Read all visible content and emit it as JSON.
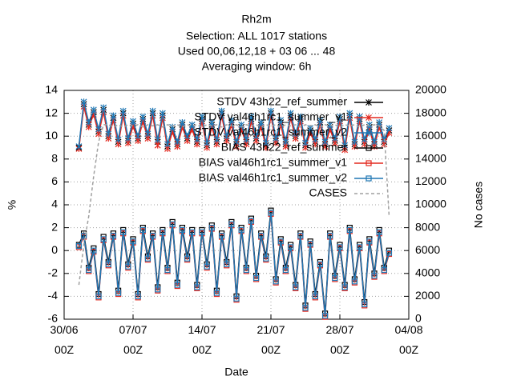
{
  "chart_data": {
    "type": "line",
    "title": "Rh2m",
    "subtitle": [
      "Selection: ALL   1017 stations",
      "Used  00,06,12,18 + 03 06 ... 48",
      "Averaging window:  6h"
    ],
    "xlabel": "Date",
    "ylabel": "%",
    "y2label": "No cases",
    "xlim": [
      0,
      35
    ],
    "xticks": [
      {
        "value": 0,
        "label": "30/06\n00Z"
      },
      {
        "value": 7,
        "label": "07/07\n00Z"
      },
      {
        "value": 14,
        "label": "14/07\n00Z"
      },
      {
        "value": 21,
        "label": "21/07\n00Z"
      },
      {
        "value": 28,
        "label": "28/07\n00Z"
      },
      {
        "value": 35,
        "label": "04/08\n00Z"
      }
    ],
    "ylim": [
      -6,
      14
    ],
    "yticks": [
      -6,
      -4,
      -2,
      0,
      2,
      4,
      6,
      8,
      10,
      12,
      14
    ],
    "y2lim": [
      0,
      20000
    ],
    "y2ticks": [
      0,
      2000,
      4000,
      6000,
      8000,
      10000,
      12000,
      14000,
      16000,
      18000,
      20000
    ],
    "grid": true,
    "legend": "top right",
    "x": [
      1.5,
      2,
      2.5,
      3,
      3.5,
      4,
      4.5,
      5,
      5.5,
      6,
      6.5,
      7,
      7.5,
      8,
      8.5,
      9,
      9.5,
      10,
      10.5,
      11,
      11.5,
      12,
      12.5,
      13,
      13.5,
      14,
      14.5,
      15,
      15.5,
      16,
      16.5,
      17,
      17.5,
      18,
      18.5,
      19,
      19.5,
      20,
      20.5,
      21,
      21.5,
      22,
      22.5,
      23,
      23.5,
      24,
      24.5,
      25,
      25.5,
      26,
      26.5,
      27,
      27.5,
      28,
      28.5,
      29,
      29.5,
      30,
      30.5,
      31,
      31.5,
      32,
      32.5,
      33
    ],
    "series": [
      {
        "name": "STDV 43h22_ref_summer",
        "color": "#000000",
        "marker": "x",
        "values": [
          9.0,
          12.8,
          11.0,
          12.1,
          10.4,
          12.3,
          10.0,
          11.6,
          9.5,
          12.0,
          9.6,
          11.1,
          9.8,
          11.5,
          10.0,
          12.0,
          9.5,
          11.8,
          9.1,
          10.6,
          9.3,
          11.0,
          9.8,
          10.8,
          9.5,
          11.5,
          9.2,
          11.0,
          9.5,
          12.0,
          9.8,
          11.2,
          9.3,
          10.8,
          9.5,
          11.5,
          9.8,
          11.0,
          9.2,
          12.0,
          9.6,
          11.2,
          9.3,
          11.8,
          10.0,
          11.5,
          9.2,
          10.5,
          9.5,
          11.2,
          9.3,
          10.8,
          9.6,
          11.5,
          9.0,
          11.8,
          9.3,
          11.5,
          9.5,
          10.8,
          9.3,
          11.0,
          9.5,
          10.5
        ]
      },
      {
        "name": "STDV val46h1rc1_summer_v1",
        "color": "#e3281f",
        "marker": "x",
        "values": [
          8.9,
          12.6,
          10.8,
          11.9,
          10.2,
          12.1,
          9.8,
          11.4,
          9.3,
          11.8,
          9.4,
          10.9,
          9.6,
          11.3,
          9.8,
          11.8,
          9.2,
          11.6,
          8.9,
          10.4,
          9.1,
          10.8,
          9.6,
          10.6,
          9.3,
          11.3,
          9.0,
          10.8,
          9.3,
          11.8,
          9.6,
          11.0,
          9.1,
          10.6,
          9.3,
          11.3,
          9.6,
          10.8,
          9.0,
          11.8,
          9.4,
          11.0,
          9.1,
          11.6,
          9.8,
          11.3,
          9.0,
          10.3,
          9.3,
          11.0,
          9.1,
          10.6,
          9.4,
          11.3,
          8.8,
          11.6,
          9.1,
          11.3,
          9.3,
          10.6,
          9.1,
          10.8,
          9.3,
          10.3
        ]
      },
      {
        "name": "STDV val46h1rc1_summer_v2",
        "color": "#1f77b4",
        "marker": "x",
        "values": [
          9.1,
          13.0,
          11.2,
          12.3,
          10.6,
          12.5,
          10.2,
          11.8,
          9.7,
          12.2,
          9.8,
          11.3,
          10.0,
          11.7,
          10.2,
          12.2,
          9.7,
          12.0,
          9.3,
          10.8,
          9.5,
          11.2,
          10.0,
          11.0,
          9.7,
          11.7,
          9.4,
          11.2,
          9.7,
          12.2,
          10.0,
          11.4,
          9.5,
          11.0,
          9.7,
          11.7,
          10.0,
          11.2,
          9.4,
          12.2,
          9.8,
          11.4,
          9.5,
          12.0,
          10.2,
          11.7,
          9.4,
          10.7,
          9.7,
          11.4,
          9.5,
          11.0,
          9.8,
          11.7,
          9.2,
          12.0,
          9.5,
          11.7,
          9.7,
          11.0,
          9.5,
          11.2,
          9.7,
          10.7
        ]
      },
      {
        "name": "BIAS 43h22_ref_summer",
        "color": "#000000",
        "marker": "square",
        "values": [
          0.5,
          1.5,
          -1.5,
          0.2,
          -3.8,
          1.2,
          -1.0,
          1.5,
          -3.5,
          1.8,
          -1.2,
          1.0,
          -3.8,
          2.0,
          -0.5,
          1.5,
          -3.2,
          1.8,
          -1.5,
          2.5,
          -2.8,
          2.0,
          -0.5,
          1.8,
          -3.0,
          1.8,
          -1.2,
          2.2,
          -3.5,
          1.5,
          -1.0,
          2.5,
          -4.0,
          2.0,
          -1.5,
          2.8,
          -2.2,
          1.5,
          -0.5,
          3.5,
          -2.5,
          1.0,
          -1.5,
          0.5,
          -3.0,
          1.5,
          -4.8,
          0.8,
          -3.8,
          -1.0,
          -5.5,
          1.5,
          -2.2,
          0.5,
          -3.0,
          2.0,
          -2.5,
          0.5,
          -4.5,
          1.0,
          -2.0,
          1.8,
          -1.5,
          0.0
        ]
      },
      {
        "name": "BIAS val46h1rc1_summer_v1",
        "color": "#e3281f",
        "marker": "square",
        "values": [
          0.3,
          1.2,
          -1.8,
          -0.1,
          -4.1,
          0.9,
          -1.3,
          1.2,
          -3.8,
          1.5,
          -1.5,
          0.7,
          -4.1,
          1.7,
          -0.8,
          1.2,
          -3.5,
          1.5,
          -1.8,
          2.2,
          -3.1,
          1.7,
          -0.8,
          1.5,
          -3.3,
          1.5,
          -1.5,
          1.9,
          -3.8,
          1.2,
          -1.3,
          2.2,
          -4.3,
          1.7,
          -1.8,
          2.5,
          -2.5,
          1.2,
          -0.8,
          3.2,
          -2.8,
          0.7,
          -1.8,
          0.2,
          -3.3,
          1.2,
          -5.1,
          0.5,
          -4.1,
          -1.3,
          -5.8,
          1.2,
          -2.5,
          0.2,
          -3.3,
          1.7,
          -2.8,
          0.2,
          -4.8,
          0.7,
          -2.3,
          1.5,
          -1.8,
          -0.3
        ]
      },
      {
        "name": "BIAS val46h1rc1_summer_v2",
        "color": "#1f77b4",
        "marker": "square",
        "values": [
          0.4,
          1.3,
          -1.7,
          0.0,
          -4.0,
          1.0,
          -1.2,
          1.3,
          -3.7,
          1.6,
          -1.4,
          0.8,
          -4.0,
          1.8,
          -0.7,
          1.3,
          -3.4,
          1.6,
          -1.7,
          2.3,
          -3.0,
          1.8,
          -0.7,
          1.6,
          -3.2,
          1.6,
          -1.4,
          2.0,
          -3.7,
          1.3,
          -1.2,
          2.3,
          -4.2,
          1.8,
          -1.7,
          2.6,
          -2.4,
          1.3,
          -0.7,
          3.3,
          -2.7,
          0.8,
          -1.7,
          0.3,
          -3.2,
          1.3,
          -5.0,
          0.6,
          -4.0,
          -1.2,
          -5.7,
          1.3,
          -2.4,
          0.3,
          -3.2,
          1.8,
          -2.7,
          0.3,
          -4.7,
          0.8,
          -2.2,
          1.6,
          -1.7,
          -0.2
        ]
      },
      {
        "name": "CASES",
        "color": "#a0a0a0",
        "marker": "none",
        "dashed": true,
        "axis": "y2",
        "values": [
          3000,
          6500,
          9000,
          12500,
          15500,
          17000,
          17000,
          16800,
          17000,
          16800,
          17000,
          16900,
          17000,
          16800,
          17000,
          16900,
          17000,
          16800,
          17000,
          16900,
          17000,
          16800,
          17000,
          16900,
          17000,
          16800,
          17000,
          16900,
          17000,
          16800,
          17000,
          16900,
          17000,
          16800,
          17000,
          16900,
          17000,
          16800,
          17000,
          16900,
          17000,
          16800,
          17000,
          16900,
          17000,
          16800,
          17000,
          16900,
          17000,
          16800,
          17000,
          16900,
          17000,
          16800,
          17000,
          16900,
          17000,
          16800,
          17000,
          16900,
          17000,
          16900,
          16500,
          9000
        ]
      }
    ]
  }
}
